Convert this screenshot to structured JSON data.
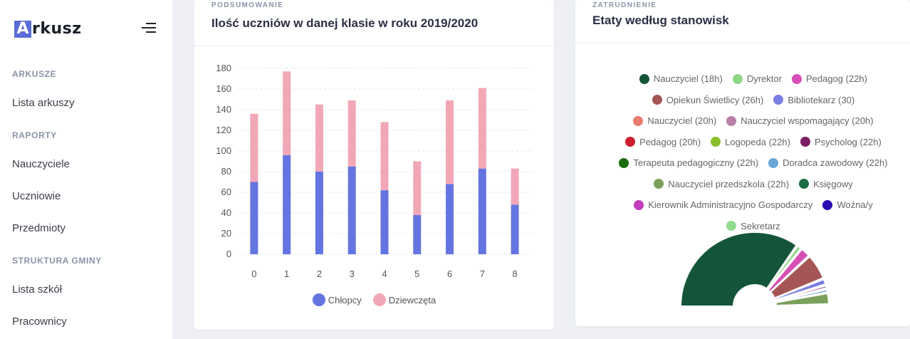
{
  "sidebar": {
    "logo_letter": "A",
    "logo_rest": "rkusz",
    "sections": [
      {
        "title": "ARKUSZE",
        "items": [
          "Lista arkuszy"
        ]
      },
      {
        "title": "RAPORTY",
        "items": [
          "Nauczyciele",
          "Uczniowie",
          "Przedmioty"
        ]
      },
      {
        "title": "STRUKTURA GMINY",
        "items": [
          "Lista szkół",
          "Pracownicy"
        ]
      }
    ]
  },
  "card1": {
    "kicker": "PODSUMOWANIE",
    "title": "Ilość uczniów w danej klasie w roku 2019/2020"
  },
  "card2": {
    "kicker": "ZATRUDNIENIE",
    "title": "Etaty według stanowisk"
  },
  "chart_data": [
    {
      "type": "bar",
      "stacked": true,
      "categories": [
        "0",
        "1",
        "2",
        "3",
        "4",
        "5",
        "6",
        "7",
        "8"
      ],
      "series": [
        {
          "name": "Chłopcy",
          "color": "#6474e0",
          "values": [
            70,
            96,
            80,
            85,
            62,
            38,
            68,
            83,
            48
          ]
        },
        {
          "name": "Dziewczęta",
          "color": "#f2a7b6",
          "values": [
            66,
            81,
            65,
            64,
            66,
            52,
            81,
            78,
            35
          ]
        }
      ],
      "ylim": [
        0,
        180
      ],
      "yticks": [
        0,
        20,
        40,
        60,
        80,
        100,
        120,
        140,
        160,
        180
      ],
      "grid": true,
      "legend": "bottom"
    },
    {
      "type": "pie",
      "legend": "top",
      "labels": [
        "Nauczyciel (18h)",
        "Dyrektor",
        "Pedagog (22h)",
        "Opiekun Świetlicy (26h)",
        "Bibliotekarz (30)",
        "Nauczyciel (20h)",
        "Nauczyciel wspomagający (20h)",
        "Pedagog (20h)",
        "Logopeda (22h)",
        "Psycholog (22h)",
        "Terapeuta pedagogiczny (22h)",
        "Doradca zawodowy (22h)",
        "Nauczyciel przedszkola (22h)",
        "Księgowy",
        "Kierownik Administracyjno Gospodarczy",
        "Woźna/y",
        "Sekretarz"
      ],
      "colors": [
        "#14553a",
        "#8fd68a",
        "#d64fb5",
        "#a55555",
        "#7b7ee0",
        "#e87c6f",
        "#b77fa8",
        "#cc1f2e",
        "#8abf2a",
        "#7a1e63",
        "#1e6e10",
        "#6aa6d6",
        "#7aa05c",
        "#1e6e45",
        "#c23cbb",
        "#2a0ab0",
        "#8edb8e"
      ],
      "legend_rows": [
        [
          0,
          1,
          2
        ],
        [
          3,
          4
        ],
        [
          5,
          6
        ],
        [
          7,
          8,
          9
        ],
        [
          10,
          11
        ],
        [
          12,
          13
        ],
        [
          14,
          15
        ],
        [
          16
        ]
      ],
      "visible_slices": [
        {
          "index": 0,
          "value": 60
        },
        {
          "index": 1,
          "value": 2
        },
        {
          "index": 2,
          "value": 4
        },
        {
          "index": 3,
          "value": 10
        },
        {
          "index": 4,
          "value": 2.5
        },
        {
          "index": 6,
          "value": 1.5
        },
        {
          "index": 11,
          "value": 1.5
        },
        {
          "index": 12,
          "value": 4.5
        }
      ]
    }
  ]
}
